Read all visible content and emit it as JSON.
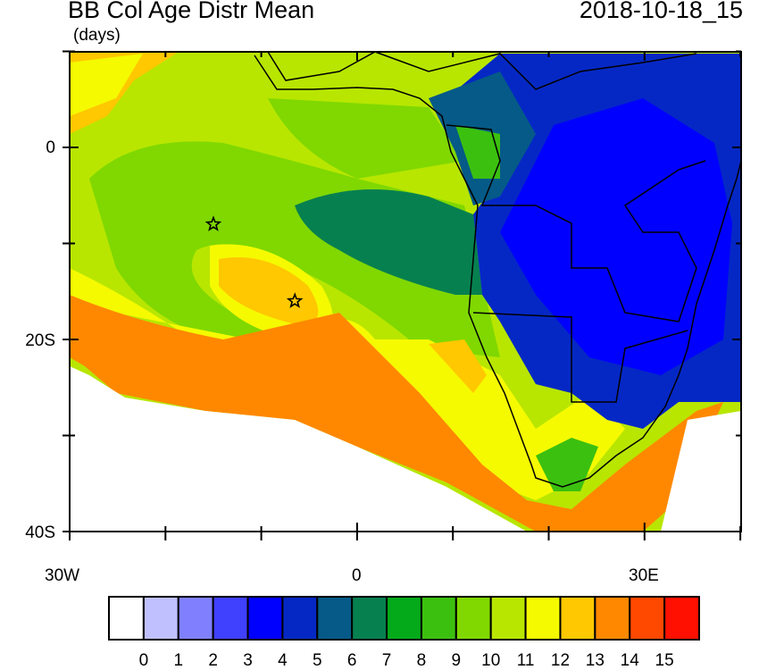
{
  "title": "BB Col Age Distr Mean",
  "units": "(days)",
  "date": "2018-10-18_15",
  "map": {
    "lon_range": [
      "30W",
      "40E"
    ],
    "lat_range": [
      "40S",
      "10N"
    ],
    "x_tick_labels": [
      "30W",
      "0",
      "30E"
    ],
    "y_tick_labels": [
      "0",
      "20S",
      "40S"
    ],
    "markers": [
      {
        "symbol": "star",
        "lon": -15,
        "lat": -8
      },
      {
        "symbol": "star",
        "lon": -6.5,
        "lat": -16
      }
    ]
  },
  "colorbar": {
    "labels": [
      "0",
      "1",
      "2",
      "3",
      "4",
      "5",
      "6",
      "7",
      "8",
      "9",
      "10",
      "11",
      "12",
      "13",
      "14",
      "15"
    ],
    "colors": [
      "#ffffff",
      "#c0c0ff",
      "#8080ff",
      "#4040ff",
      "#0000ff",
      "#0528c5",
      "#055a87",
      "#078050",
      "#05aa1a",
      "#3cc010",
      "#80d800",
      "#b8e600",
      "#f5fa00",
      "#ffc800",
      "#ff8800",
      "#ff4800",
      "#ff1000"
    ]
  }
}
